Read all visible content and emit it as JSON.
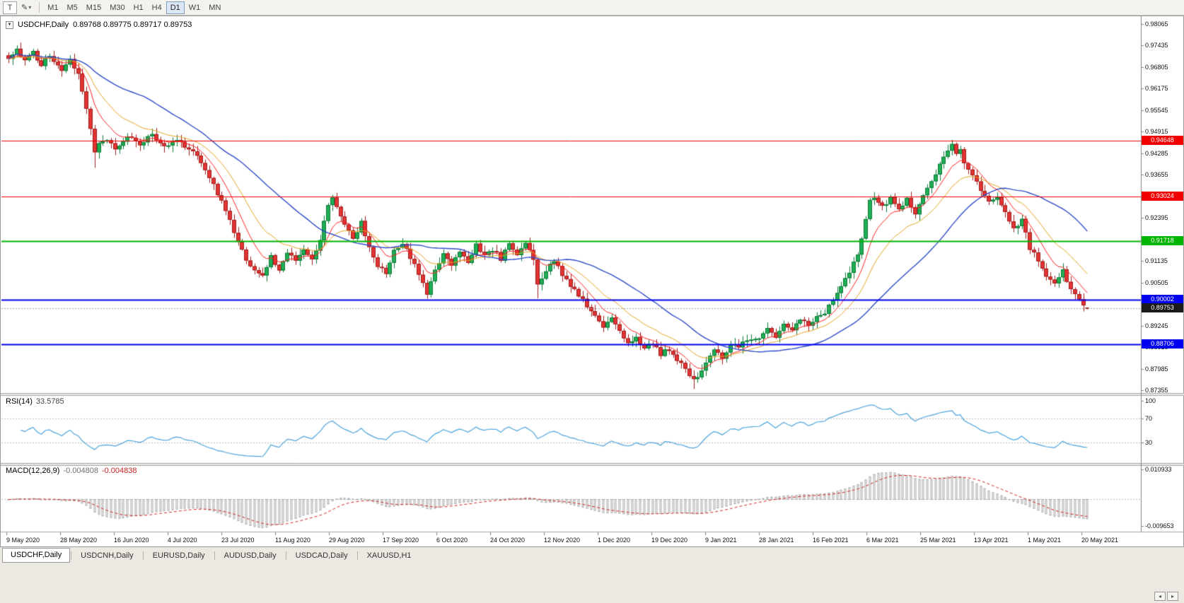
{
  "icons": {
    "collapse": "▼",
    "caret": "▾",
    "pencil": "✎",
    "scroll_left": "◂",
    "scroll_right": "▸"
  },
  "toolbar": {
    "tool_button": "T",
    "timeframes": [
      "M1",
      "M5",
      "M15",
      "M30",
      "H1",
      "H4",
      "D1",
      "W1",
      "MN"
    ],
    "active_timeframe": "D1"
  },
  "title_bar": {
    "symbol_period": "USDCHF,Daily",
    "ohlc": "0.89768  0.89775  0.89717  0.89753"
  },
  "tabs": {
    "items": [
      "USDCHF,Daily",
      "USDCNH,Daily",
      "EURUSD,Daily",
      "AUDUSD,Daily",
      "USDCAD,Daily",
      "XAUUSD,H1"
    ],
    "active_index": 0
  },
  "chart_data": {
    "type": "candlestick",
    "symbol": "USDCHF",
    "timeframe": "Daily",
    "ohlc_current": {
      "open": "0.89768",
      "high": "0.89775",
      "low": "0.89717",
      "close": "0.89753"
    },
    "price_axis": {
      "labels": [
        "0.98065",
        "0.97435",
        "0.96805",
        "0.96175",
        "0.95545",
        "0.94915",
        "0.94285",
        "0.93655",
        "0.93025",
        "0.92395",
        "0.91765",
        "0.91135",
        "0.90505",
        "0.89875",
        "0.89245",
        "0.88615",
        "0.87985",
        "0.87355"
      ]
    },
    "x_axis": {
      "labels": [
        "9 May 2020",
        "28 May 2020",
        "16 Jun 2020",
        "4 Jul 2020",
        "23 Jul 2020",
        "11 Aug 2020",
        "29 Aug 2020",
        "17 Sep 2020",
        "6 Oct 2020",
        "24 Oct 2020",
        "12 Nov 2020",
        "1 Dec 2020",
        "19 Dec 2020",
        "9 Jan 2021",
        "28 Jan 2021",
        "16 Feb 2021",
        "6 Mar 2021",
        "25 Mar 2021",
        "13 Apr 2021",
        "1 May 2021",
        "20 May 2021"
      ]
    },
    "candles": {
      "count": 264,
      "up_color": "#1fae54",
      "up_edge": "#0e7a38",
      "down_color": "#e23434",
      "down_edge": "#a31d1d",
      "close_anchors": [
        [
          0,
          0.9705
        ],
        [
          2,
          0.9735
        ],
        [
          4,
          0.9695
        ],
        [
          6,
          0.9725
        ],
        [
          8,
          0.9682
        ],
        [
          10,
          0.9718
        ],
        [
          13,
          0.9672
        ],
        [
          15,
          0.97
        ],
        [
          17,
          0.9655
        ],
        [
          19,
          0.956
        ],
        [
          21,
          0.9435
        ],
        [
          23,
          0.9468
        ],
        [
          26,
          0.9445
        ],
        [
          29,
          0.9475
        ],
        [
          32,
          0.9455
        ],
        [
          35,
          0.9482
        ],
        [
          38,
          0.9452
        ],
        [
          41,
          0.9468
        ],
        [
          44,
          0.9442
        ],
        [
          46,
          0.942
        ],
        [
          48,
          0.9382
        ],
        [
          50,
          0.9332
        ],
        [
          52,
          0.929
        ],
        [
          54,
          0.9232
        ],
        [
          56,
          0.9165
        ],
        [
          58,
          0.912
        ],
        [
          60,
          0.9088
        ],
        [
          62,
          0.9072
        ],
        [
          64,
          0.9125
        ],
        [
          66,
          0.9092
        ],
        [
          68,
          0.914
        ],
        [
          70,
          0.9108
        ],
        [
          72,
          0.9148
        ],
        [
          74,
          0.912
        ],
        [
          76,
          0.918
        ],
        [
          78,
          0.9278
        ],
        [
          79,
          0.9302
        ],
        [
          80,
          0.9268
        ],
        [
          82,
          0.9215
        ],
        [
          84,
          0.9182
        ],
        [
          86,
          0.9225
        ],
        [
          88,
          0.9152
        ],
        [
          90,
          0.91
        ],
        [
          92,
          0.9078
        ],
        [
          94,
          0.9148
        ],
        [
          96,
          0.9165
        ],
        [
          98,
          0.9122
        ],
        [
          100,
          0.908
        ],
        [
          102,
          0.9022
        ],
        [
          104,
          0.909
        ],
        [
          106,
          0.9132
        ],
        [
          108,
          0.9102
        ],
        [
          110,
          0.9146
        ],
        [
          112,
          0.9112
        ],
        [
          114,
          0.916
        ],
        [
          116,
          0.9132
        ],
        [
          118,
          0.9148
        ],
        [
          120,
          0.912
        ],
        [
          122,
          0.9162
        ],
        [
          124,
          0.9132
        ],
        [
          126,
          0.9172
        ],
        [
          128,
          0.912
        ],
        [
          129,
          0.9042
        ],
        [
          131,
          0.9082
        ],
        [
          133,
          0.9116
        ],
        [
          135,
          0.9076
        ],
        [
          137,
          0.9042
        ],
        [
          139,
          0.9012
        ],
        [
          141,
          0.8982
        ],
        [
          143,
          0.8952
        ],
        [
          145,
          0.8922
        ],
        [
          147,
          0.8942
        ],
        [
          149,
          0.8906
        ],
        [
          151,
          0.8872
        ],
        [
          153,
          0.8892
        ],
        [
          155,
          0.8856
        ],
        [
          157,
          0.8872
        ],
        [
          159,
          0.8842
        ],
        [
          161,
          0.8856
        ],
        [
          163,
          0.8822
        ],
        [
          165,
          0.8802
        ],
        [
          167,
          0.8762
        ],
        [
          168,
          0.8778
        ],
        [
          170,
          0.8812
        ],
        [
          172,
          0.8852
        ],
        [
          174,
          0.8832
        ],
        [
          176,
          0.8872
        ],
        [
          178,
          0.8856
        ],
        [
          180,
          0.8886
        ],
        [
          183,
          0.888
        ],
        [
          185,
          0.8912
        ],
        [
          187,
          0.8892
        ],
        [
          189,
          0.8926
        ],
        [
          191,
          0.8906
        ],
        [
          193,
          0.8942
        ],
        [
          195,
          0.8922
        ],
        [
          197,
          0.8952
        ],
        [
          199,
          0.8966
        ],
        [
          201,
          0.9002
        ],
        [
          203,
          0.9042
        ],
        [
          205,
          0.9082
        ],
        [
          207,
          0.9132
        ],
        [
          209,
          0.9232
        ],
        [
          210,
          0.9288
        ],
        [
          211,
          0.9304
        ],
        [
          213,
          0.927
        ],
        [
          215,
          0.93
        ],
        [
          217,
          0.9262
        ],
        [
          219,
          0.9292
        ],
        [
          221,
          0.9252
        ],
        [
          223,
          0.9302
        ],
        [
          225,
          0.9342
        ],
        [
          227,
          0.9392
        ],
        [
          229,
          0.944
        ],
        [
          230,
          0.9452
        ],
        [
          231,
          0.943
        ],
        [
          232,
          0.9446
        ],
        [
          233,
          0.9402
        ],
        [
          235,
          0.9362
        ],
        [
          237,
          0.9322
        ],
        [
          239,
          0.9282
        ],
        [
          241,
          0.9302
        ],
        [
          243,
          0.9252
        ],
        [
          245,
          0.9212
        ],
        [
          247,
          0.9232
        ],
        [
          249,
          0.9152
        ],
        [
          251,
          0.9112
        ],
        [
          253,
          0.9072
        ],
        [
          255,
          0.9046
        ],
        [
          257,
          0.9082
        ],
        [
          259,
          0.9032
        ],
        [
          261,
          0.8996
        ],
        [
          263,
          0.8975
        ]
      ],
      "spikes": [
        {
          "i": 21,
          "low": 0.9386
        },
        {
          "i": 79,
          "high": 0.9307
        },
        {
          "i": 102,
          "low": 0.9003
        },
        {
          "i": 129,
          "low": 0.9004
        },
        {
          "i": 167,
          "low": 0.8739
        },
        {
          "i": 230,
          "high": 0.9468
        }
      ]
    },
    "moving_averages": [
      {
        "name": "fast",
        "type": "ema",
        "period": 8,
        "color": "#ff2020",
        "width": 1
      },
      {
        "name": "medium",
        "type": "ema",
        "period": 17,
        "color": "#e3a21f",
        "width": 1
      },
      {
        "name": "slow",
        "type": "sma",
        "period": 34,
        "color": "#2f4cc8",
        "width": 1.4
      }
    ],
    "hlines": [
      {
        "label": "0.94648",
        "price": 0.94648,
        "color": "#f00000",
        "width": 1
      },
      {
        "label": "0.93024",
        "price": 0.93024,
        "color": "#f00000",
        "width": 1
      },
      {
        "label": "0.91718",
        "price": 0.91718,
        "color": "#00b400",
        "width": 2
      },
      {
        "label": "0.90002",
        "price": 0.90002,
        "color": "#0000f0",
        "width": 2
      },
      {
        "label": "0.88706",
        "price": 0.88706,
        "color": "#0000f0",
        "width": 2
      }
    ],
    "bid": {
      "label": "0.89753",
      "price": 0.89753,
      "color": "#1a1a1a",
      "line_color": "#9a9a9a"
    },
    "rsi": {
      "name": "RSI(14)",
      "value": "33.5785",
      "period": 14,
      "range": [
        0,
        100
      ],
      "levels": [
        70,
        30
      ],
      "axis_labels": [
        "100",
        "70",
        "30"
      ],
      "color": "#4ba3dc",
      "level_color": "#b9b9b9"
    },
    "macd": {
      "name": "MACD(12,26,9)",
      "value_main": "-0.004808",
      "value_signal": "-0.004838",
      "fast": 12,
      "slow": 26,
      "signal": 9,
      "range": [
        -0.009653,
        0.010933
      ],
      "axis_labels": [
        "0.010933",
        "-0.009653"
      ],
      "hist_color": "#a6a6a6",
      "signal_color": "#d42020",
      "zero_color": "#b9b9b9"
    }
  }
}
